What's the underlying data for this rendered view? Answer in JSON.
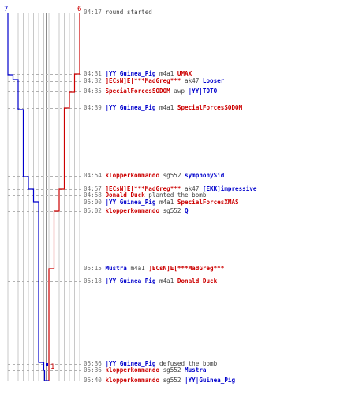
{
  "chart_data": {
    "type": "timeline",
    "teams": {
      "blue": {
        "color": "#0000cc",
        "start_count": 7
      },
      "red": {
        "color": "#cc0000",
        "start_count": 6
      }
    },
    "events": [
      {
        "time": "04:17",
        "text": "round started",
        "parts": []
      },
      {
        "time": "04:31",
        "parts": [
          {
            "t": "|YY|Guinea_Pig",
            "team": "blue"
          },
          {
            "t": " m4a1 "
          },
          {
            "t": "UMAX",
            "team": "red"
          }
        ]
      },
      {
        "time": "04:32",
        "parts": [
          {
            "t": "]ECsN]E[***MadGreg***",
            "team": "red"
          },
          {
            "t": " ak47 "
          },
          {
            "t": "Looser",
            "team": "blue"
          }
        ]
      },
      {
        "time": "04:35",
        "parts": [
          {
            "t": "SpecialForcesSODOM",
            "team": "red"
          },
          {
            "t": " awp "
          },
          {
            "t": "|YY|TOTO",
            "team": "blue"
          }
        ]
      },
      {
        "time": "04:39",
        "parts": [
          {
            "t": "|YY|Guinea_Pig",
            "team": "blue"
          },
          {
            "t": " m4a1 "
          },
          {
            "t": "SpecialForcesSODOM",
            "team": "red"
          }
        ]
      },
      {
        "time": "04:54",
        "parts": [
          {
            "t": "klopperkommando",
            "team": "red"
          },
          {
            "t": " sg552 "
          },
          {
            "t": "symphonySid",
            "team": "blue"
          }
        ]
      },
      {
        "time": "04:57",
        "parts": [
          {
            "t": "]ECsN]E[***MadGreg***",
            "team": "red"
          },
          {
            "t": " ak47 "
          },
          {
            "t": "[EKK]impressive",
            "team": "blue"
          }
        ]
      },
      {
        "time": "04:58",
        "parts": [
          {
            "t": "Donald Duck",
            "team": "red"
          },
          {
            "t": " planted the bomb"
          }
        ]
      },
      {
        "time": "05:00",
        "parts": [
          {
            "t": "|YY|Guinea_Pig",
            "team": "blue"
          },
          {
            "t": " m4a1 "
          },
          {
            "t": "SpecialForcesXMAS",
            "team": "red"
          }
        ]
      },
      {
        "time": "05:02",
        "parts": [
          {
            "t": "klopperkommando",
            "team": "red"
          },
          {
            "t": " sg552 "
          },
          {
            "t": "Q",
            "team": "blue"
          }
        ]
      },
      {
        "time": "05:15",
        "parts": [
          {
            "t": "Mustra",
            "team": "blue"
          },
          {
            "t": " m4a1 "
          },
          {
            "t": "]ECsN]E[***MadGreg***",
            "team": "red"
          }
        ]
      },
      {
        "time": "05:18",
        "parts": [
          {
            "t": "|YY|Guinea_Pig",
            "team": "blue"
          },
          {
            "t": " m4a1 "
          },
          {
            "t": "Donald Duck",
            "team": "red"
          }
        ]
      },
      {
        "time": "05:36",
        "parts": [
          {
            "t": "|YY|Guinea_Pig",
            "team": "blue"
          },
          {
            "t": " defused the bomb"
          }
        ]
      },
      {
        "time": "05:36",
        "parts": [
          {
            "t": "klopperkommando",
            "team": "red"
          },
          {
            "t": " sg552 "
          },
          {
            "t": "Mustra",
            "team": "blue"
          }
        ]
      },
      {
        "time": "05:40",
        "parts": [
          {
            "t": "klopperkommando",
            "team": "red"
          },
          {
            "t": " sg552 "
          },
          {
            "t": "|YY|Guinea_Pig",
            "team": "blue"
          }
        ]
      }
    ],
    "blue_counts": [
      7,
      7,
      6,
      5,
      5,
      4,
      3,
      2,
      2,
      1,
      0
    ],
    "red_counts": [
      6,
      5,
      5,
      4,
      3,
      3,
      2,
      2,
      1,
      1,
      1
    ],
    "final": {
      "blue": 0,
      "red": 1
    },
    "bomb_marker": {
      "color": "#0000cc",
      "at": "05:36"
    }
  }
}
